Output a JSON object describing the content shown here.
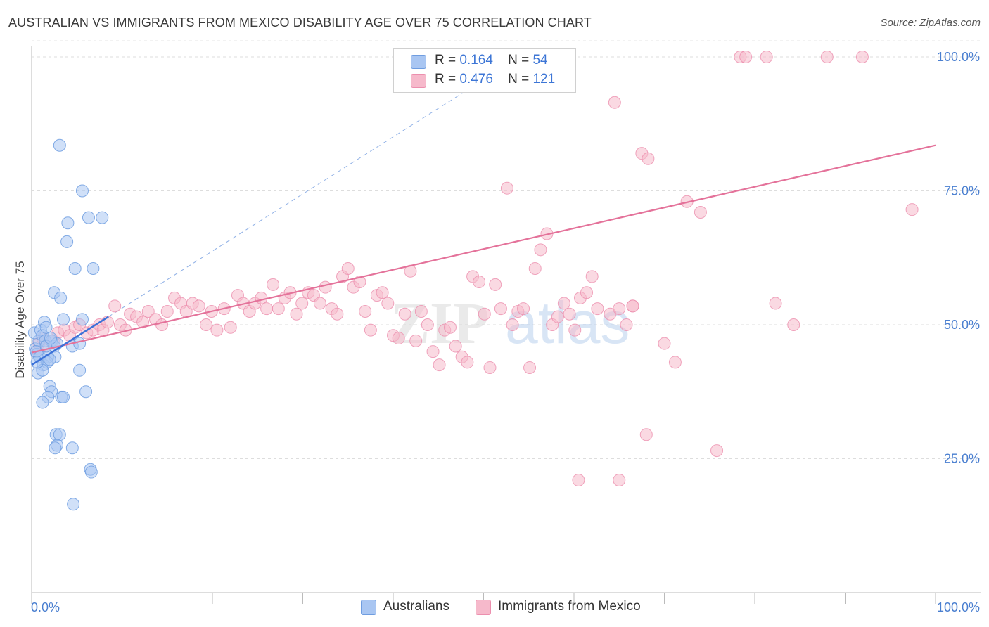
{
  "title": "AUSTRALIAN VS IMMIGRANTS FROM MEXICO DISABILITY AGE OVER 75 CORRELATION CHART",
  "source": "Source: ZipAtlas.com",
  "watermark": {
    "zip": "ZIP",
    "atlas": "atlas"
  },
  "colors": {
    "blue_fill": "#a9c6f2",
    "blue_stroke": "#6f9de0",
    "blue_line": "#3c72d8",
    "pink_fill": "#f6b9cb",
    "pink_stroke": "#ec8fae",
    "pink_line": "#e4729a",
    "tick_text": "#4a7fd0",
    "grid": "#dddddd"
  },
  "legend": {
    "r_label": "R =",
    "n_label": "N =",
    "rows": [
      {
        "r": "0.164",
        "n": "54"
      },
      {
        "r": "0.476",
        "n": "121"
      }
    ]
  },
  "bottom_legend": {
    "australians": "Australians",
    "mexico": "Immigrants from Mexico"
  },
  "chart_data": {
    "type": "scatter",
    "title": "AUSTRALIAN VS IMMIGRANTS FROM MEXICO DISABILITY AGE OVER 75 CORRELATION CHART",
    "xlabel": "",
    "ylabel": "Disability Age Over 75",
    "xlim": [
      0,
      100
    ],
    "ylim": [
      0,
      103
    ],
    "x_tick_labels": [
      "0.0%",
      "100.0%"
    ],
    "y_ticks": [
      25,
      50,
      75,
      100
    ],
    "y_tick_labels": [
      "25.0%",
      "50.0%",
      "75.0%",
      "100.0%"
    ],
    "grid": true,
    "legend_position": "top-center",
    "series": [
      {
        "name": "Australians",
        "r": 0.164,
        "n": 54,
        "trend": {
          "x": [
            0,
            8.5
          ],
          "y": [
            42.5,
            51.5
          ]
        },
        "trend_extension": {
          "x": [
            8.5,
            54
          ],
          "y": [
            51.5,
            100
          ]
        },
        "points": [
          [
            0.4,
            45.5
          ],
          [
            0.6,
            44.5
          ],
          [
            0.8,
            47
          ],
          [
            0.3,
            48.5
          ],
          [
            1,
            49
          ],
          [
            1.2,
            48
          ],
          [
            1.5,
            47
          ],
          [
            2.2,
            47
          ],
          [
            2.5,
            46
          ],
          [
            0.5,
            45
          ],
          [
            0.9,
            44
          ],
          [
            1.8,
            44
          ],
          [
            2.6,
            44
          ],
          [
            1.3,
            42.5
          ],
          [
            1.7,
            43
          ],
          [
            2,
            43.5
          ],
          [
            0.7,
            41
          ],
          [
            1.2,
            41.5
          ],
          [
            1.4,
            50.5
          ],
          [
            1.6,
            49.5
          ],
          [
            3.5,
            51
          ],
          [
            5.6,
            51
          ],
          [
            2.5,
            56
          ],
          [
            3.2,
            55
          ],
          [
            3.1,
            83.5
          ],
          [
            5.6,
            75
          ],
          [
            4,
            69
          ],
          [
            3.9,
            65.5
          ],
          [
            6.3,
            70
          ],
          [
            7.8,
            70
          ],
          [
            4.8,
            60.5
          ],
          [
            6.8,
            60.5
          ],
          [
            4.5,
            46
          ],
          [
            5.3,
            46.5
          ],
          [
            5.3,
            41.5
          ],
          [
            2,
            38.5
          ],
          [
            2.2,
            37.5
          ],
          [
            1.8,
            36.5
          ],
          [
            3.3,
            36.5
          ],
          [
            3.5,
            36.5
          ],
          [
            6,
            37.5
          ],
          [
            1.2,
            35.5
          ],
          [
            2.7,
            29.5
          ],
          [
            3.1,
            29.5
          ],
          [
            2.8,
            27.5
          ],
          [
            4.5,
            27
          ],
          [
            2.6,
            27
          ],
          [
            6.5,
            23
          ],
          [
            6.6,
            22.5
          ],
          [
            4.6,
            16.5
          ],
          [
            1.6,
            46
          ],
          [
            2.8,
            46.5
          ],
          [
            0.6,
            43
          ],
          [
            2.1,
            47.5
          ]
        ]
      },
      {
        "name": "Immigrants from Mexico",
        "r": 0.476,
        "n": 121,
        "trend": {
          "x": [
            0,
            100
          ],
          "y": [
            44.8,
            83.5
          ]
        },
        "points": [
          [
            0.5,
            45
          ],
          [
            0.8,
            46.5
          ],
          [
            1.2,
            47.5
          ],
          [
            1.6,
            46
          ],
          [
            2.4,
            47
          ],
          [
            2.9,
            48.5
          ],
          [
            3.6,
            49
          ],
          [
            4.2,
            48
          ],
          [
            4.8,
            49.5
          ],
          [
            5.3,
            50
          ],
          [
            6.1,
            48.5
          ],
          [
            6.8,
            49
          ],
          [
            7.5,
            50
          ],
          [
            7.9,
            49
          ],
          [
            8.4,
            50.5
          ],
          [
            9.2,
            53.5
          ],
          [
            9.8,
            50
          ],
          [
            10.4,
            49
          ],
          [
            10.9,
            52
          ],
          [
            11.6,
            51.5
          ],
          [
            12.3,
            50.5
          ],
          [
            12.9,
            52.5
          ],
          [
            13.7,
            51
          ],
          [
            14.4,
            50
          ],
          [
            15,
            52.5
          ],
          [
            15.8,
            55
          ],
          [
            16.5,
            54
          ],
          [
            17.1,
            52.5
          ],
          [
            17.8,
            54
          ],
          [
            18.5,
            53.5
          ],
          [
            19.3,
            50
          ],
          [
            19.9,
            52.5
          ],
          [
            20.5,
            49
          ],
          [
            21.3,
            53
          ],
          [
            22,
            49.5
          ],
          [
            22.8,
            55.5
          ],
          [
            23.4,
            54
          ],
          [
            24.1,
            52.5
          ],
          [
            24.7,
            54
          ],
          [
            25.4,
            55
          ],
          [
            26,
            53
          ],
          [
            26.7,
            57.5
          ],
          [
            27.3,
            53
          ],
          [
            28,
            55
          ],
          [
            28.6,
            56
          ],
          [
            29.3,
            52
          ],
          [
            29.9,
            54
          ],
          [
            30.6,
            56
          ],
          [
            31.2,
            55.5
          ],
          [
            31.9,
            54
          ],
          [
            32.5,
            57
          ],
          [
            33.2,
            53
          ],
          [
            33.8,
            52
          ],
          [
            34.4,
            59
          ],
          [
            35,
            60.5
          ],
          [
            35.6,
            57
          ],
          [
            36.3,
            58
          ],
          [
            36.9,
            52.5
          ],
          [
            37.5,
            49
          ],
          [
            38.2,
            55.5
          ],
          [
            38.8,
            56
          ],
          [
            39.4,
            54
          ],
          [
            40,
            48
          ],
          [
            40.6,
            47.5
          ],
          [
            41.3,
            52
          ],
          [
            41.9,
            60
          ],
          [
            42.5,
            47
          ],
          [
            43.1,
            52.5
          ],
          [
            43.8,
            50
          ],
          [
            44.4,
            45
          ],
          [
            45.1,
            42.5
          ],
          [
            45.7,
            49
          ],
          [
            46.3,
            49.5
          ],
          [
            46.9,
            46
          ],
          [
            47.6,
            44
          ],
          [
            48.2,
            43
          ],
          [
            48.8,
            59
          ],
          [
            49.5,
            58
          ],
          [
            50.1,
            52
          ],
          [
            50.7,
            42
          ],
          [
            51.3,
            57.5
          ],
          [
            51.9,
            53
          ],
          [
            52.6,
            75.5
          ],
          [
            53.2,
            50
          ],
          [
            53.8,
            52.5
          ],
          [
            54.4,
            53
          ],
          [
            55.1,
            42
          ],
          [
            55.7,
            60.5
          ],
          [
            56.3,
            64
          ],
          [
            57,
            67
          ],
          [
            57.6,
            50
          ],
          [
            58.2,
            51.5
          ],
          [
            58.9,
            54
          ],
          [
            59.5,
            52
          ],
          [
            60.1,
            49
          ],
          [
            60.7,
            55
          ],
          [
            61.4,
            56
          ],
          [
            62,
            59
          ],
          [
            62.6,
            53
          ],
          [
            64,
            52
          ],
          [
            64.5,
            91.5
          ],
          [
            65,
            53
          ],
          [
            65.8,
            50
          ],
          [
            66.5,
            53.5
          ],
          [
            67.5,
            82
          ],
          [
            68.2,
            81
          ],
          [
            70,
            46.5
          ],
          [
            71.2,
            43
          ],
          [
            72.5,
            73
          ],
          [
            74,
            71
          ],
          [
            75.8,
            26.5
          ],
          [
            78.4,
            100
          ],
          [
            79,
            100
          ],
          [
            81.3,
            100
          ],
          [
            82.3,
            54
          ],
          [
            84.3,
            50
          ],
          [
            88,
            100
          ],
          [
            91.9,
            100
          ],
          [
            97.4,
            71.5
          ],
          [
            66.5,
            53.5
          ],
          [
            68,
            29.5
          ],
          [
            60.5,
            21
          ],
          [
            65,
            21
          ]
        ]
      }
    ]
  }
}
